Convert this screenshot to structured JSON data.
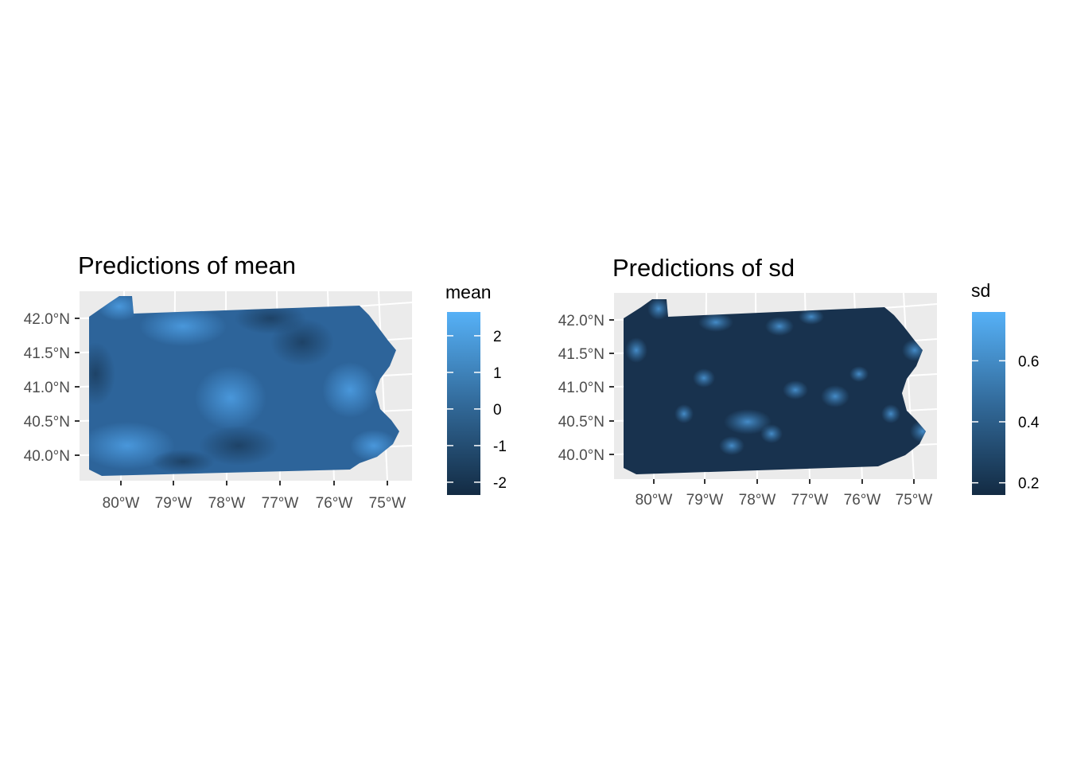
{
  "panels": [
    {
      "id": "mean",
      "title": "Predictions of mean",
      "legend": {
        "title": "mean",
        "ticks": [
          2,
          1,
          0,
          -1,
          -2
        ],
        "tick_labels": [
          "2",
          "1",
          "0",
          "-1",
          "-2"
        ],
        "range": [
          -2.35,
          2.65
        ]
      }
    },
    {
      "id": "sd",
      "title": "Predictions of sd",
      "legend": {
        "title": "sd",
        "ticks": [
          0.6,
          0.4,
          0.2
        ],
        "tick_labels": [
          "0.6",
          "0.4",
          "0.2"
        ],
        "range": [
          0.16,
          0.76
        ]
      }
    }
  ],
  "axes": {
    "lat_labels": [
      "42.0°N",
      "41.5°N",
      "41.0°N",
      "40.5°N",
      "40.0°N"
    ],
    "lon_labels": [
      "80°W",
      "79°W",
      "78°W",
      "77°W",
      "76°W",
      "75°W"
    ]
  },
  "colors": {
    "panel_bg": "#ebebeb",
    "grid": "#ffffff",
    "scale_low": "#132b43",
    "scale_high": "#56b1f7"
  }
}
